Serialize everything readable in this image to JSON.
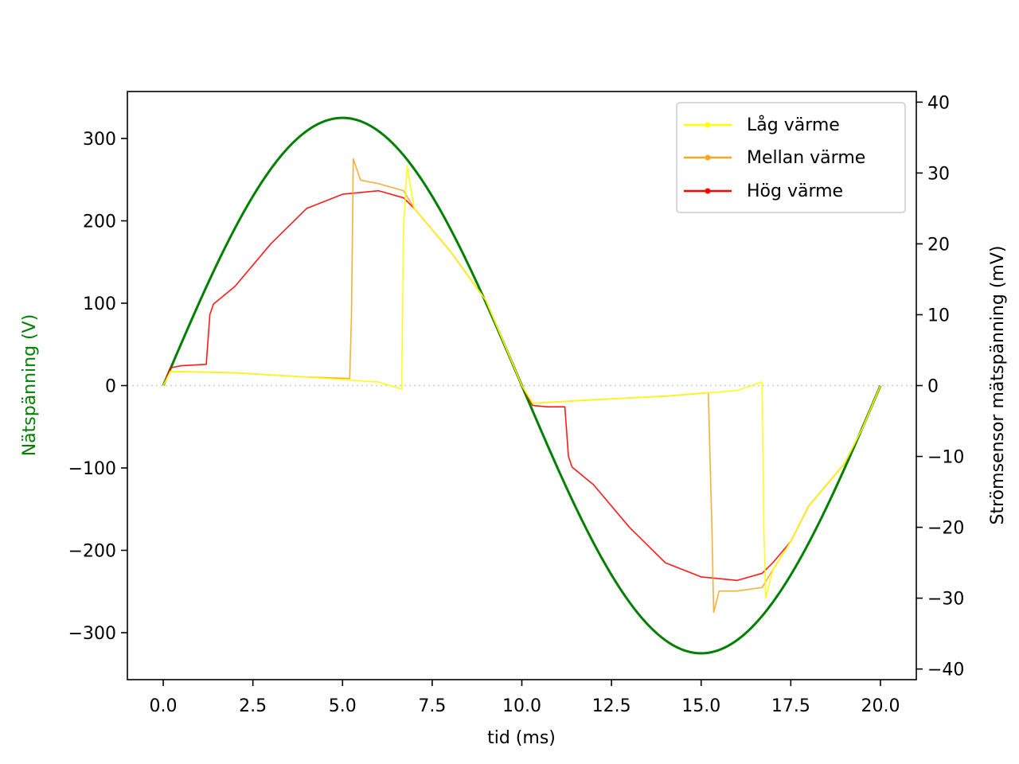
{
  "chart_data": {
    "type": "line",
    "title": "",
    "xlabel": "tid (ms)",
    "ylabel_left": "Nätspänning (V)",
    "ylabel_right": "Strömsensor mätspänning (mV)",
    "xlim": [
      -1,
      21
    ],
    "ylim_left": [
      -357,
      357
    ],
    "ylim_right": [
      -41.5,
      41.5
    ],
    "x_ticks": [
      0.0,
      2.5,
      5.0,
      7.5,
      10.0,
      12.5,
      15.0,
      17.5,
      20.0
    ],
    "x_tick_labels": [
      "0.0",
      "2.5",
      "5.0",
      "7.5",
      "10.0",
      "12.5",
      "15.0",
      "17.5",
      "20.0"
    ],
    "y_left_ticks": [
      300,
      200,
      100,
      0,
      -100,
      -200,
      -300
    ],
    "y_left_tick_labels": [
      "300",
      "200",
      "100",
      "0",
      "−100",
      "−200",
      "−300"
    ],
    "y_right_ticks": [
      40,
      30,
      20,
      10,
      0,
      -10,
      -20,
      -30,
      -40
    ],
    "y_right_tick_labels": [
      "40",
      "30",
      "20",
      "10",
      "0",
      "−10",
      "−20",
      "−30",
      "−40"
    ],
    "zero_line": {
      "style": "dotted",
      "color": "#cccccc"
    },
    "legend_position": "top-right",
    "colors": {
      "voltage": "#008000",
      "ylabel_left_color": "#008000",
      "axis": "#000000"
    },
    "voltage_series": {
      "axis": "left",
      "shape": "sine",
      "amplitude": 325,
      "period_ms": 20,
      "color": "#008000",
      "x": [
        0.0,
        1.25,
        2.5,
        3.75,
        5.0,
        6.25,
        7.5,
        8.75,
        10.0,
        11.25,
        12.5,
        13.75,
        15.0,
        16.25,
        17.5,
        18.75,
        20.0
      ],
      "y": [
        0,
        124,
        230,
        300,
        325,
        300,
        230,
        124,
        0,
        -124,
        -230,
        -300,
        -325,
        -300,
        -230,
        -124,
        0
      ]
    },
    "series": [
      {
        "name": "Låg värme",
        "axis": "right",
        "color": "#ffff00",
        "x": [
          0.0,
          0.2,
          2.0,
          4.0,
          6.0,
          6.65,
          6.7,
          6.8,
          7.0,
          8.0,
          9.0,
          9.5,
          10.0,
          10.3,
          12.0,
          14.0,
          16.0,
          16.7,
          16.75,
          16.8,
          17.0,
          17.5,
          18.0,
          19.0,
          19.5,
          20.0
        ],
        "y": [
          0,
          2,
          1.8,
          1.2,
          0.5,
          -0.5,
          22,
          31,
          25,
          19,
          12,
          6,
          0,
          -2.5,
          -2,
          -1.5,
          -0.7,
          0.5,
          -20,
          -30,
          -26,
          -22,
          -17,
          -11,
          -6,
          0
        ]
      },
      {
        "name": "Mellan värme",
        "axis": "right",
        "color": "#f5a623",
        "x": [
          0.0,
          0.2,
          2.0,
          4.0,
          5.2,
          5.25,
          5.3,
          5.5,
          6.0,
          6.7,
          7.0,
          8.0,
          9.0,
          9.5,
          10.0,
          10.3,
          12.0,
          14.0,
          15.2,
          15.3,
          15.35,
          15.5,
          16.0,
          16.7,
          17.0,
          17.5,
          18.0,
          19.0,
          19.5,
          20.0
        ],
        "y": [
          0,
          2,
          1.8,
          1.2,
          1,
          10,
          32,
          29,
          28.5,
          27.5,
          25,
          19,
          12,
          6,
          0,
          -2.5,
          -2,
          -1.5,
          -1,
          -20,
          -32,
          -29,
          -29,
          -28.5,
          -26,
          -22,
          -17,
          -11,
          -6,
          0
        ]
      },
      {
        "name": "Hög värme",
        "axis": "right",
        "color": "#ff0000",
        "x": [
          0.0,
          0.2,
          0.5,
          1.2,
          1.3,
          1.4,
          2.0,
          3.0,
          4.0,
          5.0,
          6.0,
          6.7,
          7.0,
          8.0,
          9.0,
          9.5,
          10.0,
          10.3,
          10.7,
          11.2,
          11.3,
          11.4,
          12.0,
          13.0,
          14.0,
          15.0,
          16.0,
          16.7,
          17.0,
          17.5,
          18.0,
          19.0,
          19.5,
          20.0
        ],
        "y": [
          0,
          2.5,
          2.8,
          3,
          10,
          11.5,
          14,
          20,
          25,
          27,
          27.5,
          26.5,
          25,
          19,
          12,
          6,
          0,
          -2.8,
          -3,
          -3,
          -10,
          -11.5,
          -14,
          -20,
          -25,
          -27,
          -27.5,
          -26.5,
          -25,
          -22,
          -17,
          -11,
          -6,
          0
        ]
      }
    ]
  }
}
